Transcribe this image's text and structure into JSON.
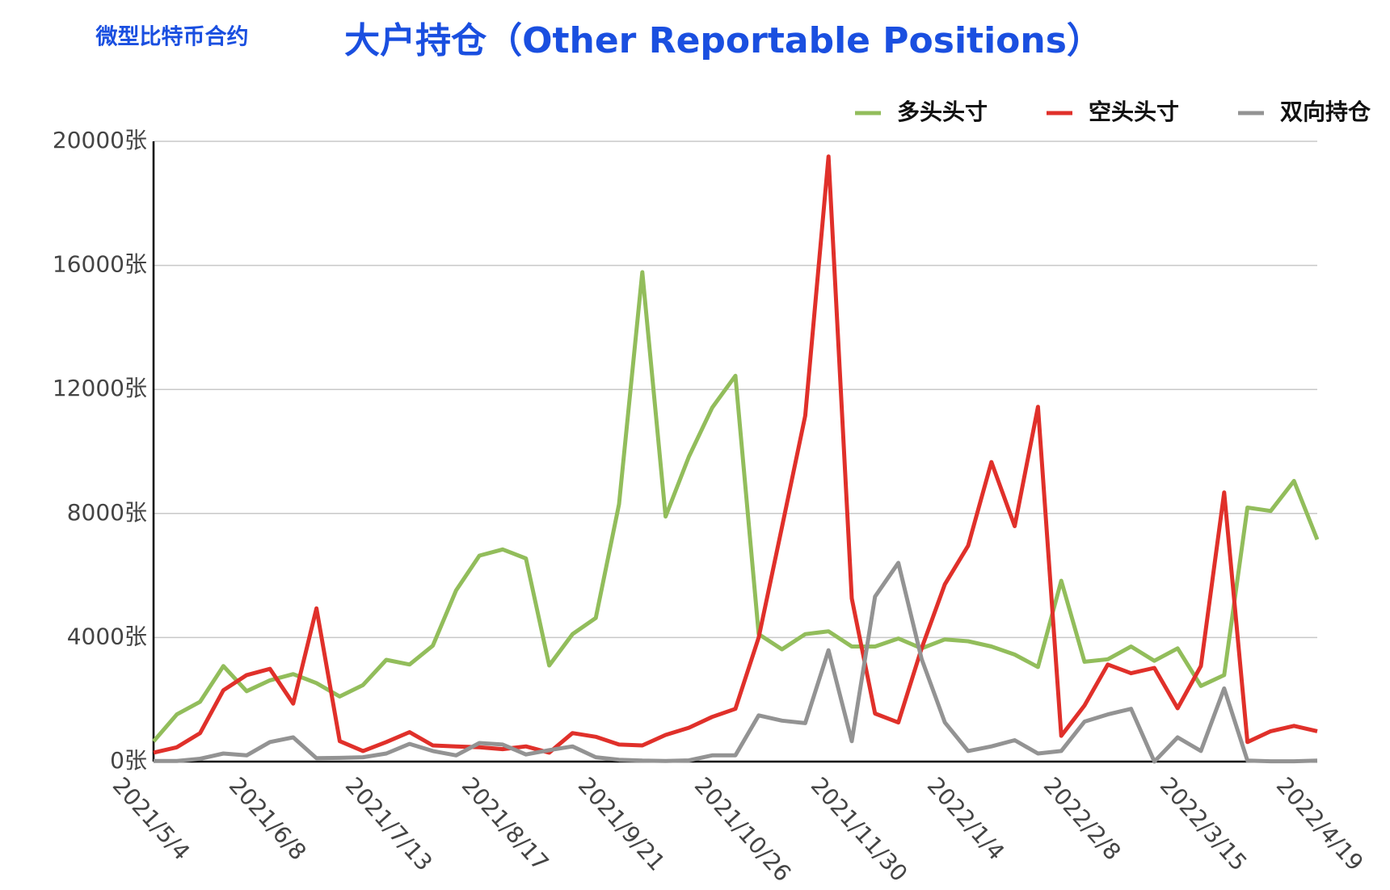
{
  "chart_data": {
    "type": "line",
    "title": "大户持仓（Other Reportable Positions）",
    "subtitle": "微型比特币合约",
    "categories": [
      "2021/5/4",
      null,
      null,
      null,
      null,
      "2021/6/8",
      null,
      null,
      null,
      null,
      "2021/7/13",
      null,
      null,
      null,
      null,
      "2021/8/17",
      null,
      null,
      null,
      null,
      "2021/9/21",
      null,
      null,
      null,
      null,
      "2021/10/26",
      null,
      null,
      null,
      null,
      "2021/11/30",
      null,
      null,
      null,
      null,
      "2022/1/4",
      null,
      null,
      null,
      null,
      "2022/2/8",
      null,
      null,
      null,
      null,
      "2022/3/15",
      null,
      null,
      null,
      null,
      "2022/4/19"
    ],
    "series": [
      {
        "name": "多头头寸",
        "color": "#92bd5b",
        "values": [
          650,
          1520,
          1930,
          3080,
          2270,
          2620,
          2820,
          2530,
          2100,
          2470,
          3280,
          3130,
          3740,
          5520,
          6640,
          6840,
          6550,
          3100,
          4110,
          4630,
          8300,
          15780,
          7900,
          9830,
          11410,
          12440,
          4110,
          3620,
          4110,
          4200,
          3710,
          3710,
          3970,
          3650,
          3940,
          3880,
          3710,
          3450,
          3050,
          5830,
          3220,
          3300,
          3710,
          3250,
          3650,
          2440,
          2790,
          8190,
          8080,
          9050,
          7160
        ]
      },
      {
        "name": "空头头寸",
        "color": "#e0302a",
        "values": [
          290,
          460,
          920,
          2300,
          2790,
          2990,
          1870,
          4940,
          660,
          340,
          630,
          950,
          520,
          490,
          460,
          400,
          490,
          290,
          920,
          800,
          550,
          520,
          860,
          1090,
          1440,
          1700,
          4000,
          7560,
          11150,
          19510,
          5260,
          1550,
          1260,
          3650,
          5720,
          6960,
          9660,
          7590,
          11440,
          830,
          1810,
          3130,
          2850,
          3020,
          1720,
          3080,
          8680,
          630,
          980,
          1150,
          980
        ]
      },
      {
        "name": "双向持仓",
        "color": "#939393",
        "values": [
          20,
          20,
          90,
          260,
          200,
          630,
          780,
          110,
          120,
          140,
          260,
          570,
          340,
          200,
          600,
          550,
          230,
          370,
          490,
          140,
          60,
          30,
          20,
          40,
          200,
          200,
          1490,
          1320,
          1240,
          3590,
          660,
          5320,
          6410,
          3310,
          1260,
          340,
          490,
          690,
          260,
          340,
          1290,
          1520,
          1700,
          0,
          780,
          340,
          2360,
          30,
          10,
          10,
          30
        ]
      }
    ],
    "ylim": [
      0,
      20000
    ],
    "yticks": [
      {
        "value": 0,
        "label": "0张"
      },
      {
        "value": 4000,
        "label": "4000张"
      },
      {
        "value": 8000,
        "label": "8000张"
      },
      {
        "value": 12000,
        "label": "12000张"
      },
      {
        "value": 16000,
        "label": "16000张"
      },
      {
        "value": 20000,
        "label": "20000张"
      }
    ],
    "grid": true,
    "legend": "top-right"
  }
}
